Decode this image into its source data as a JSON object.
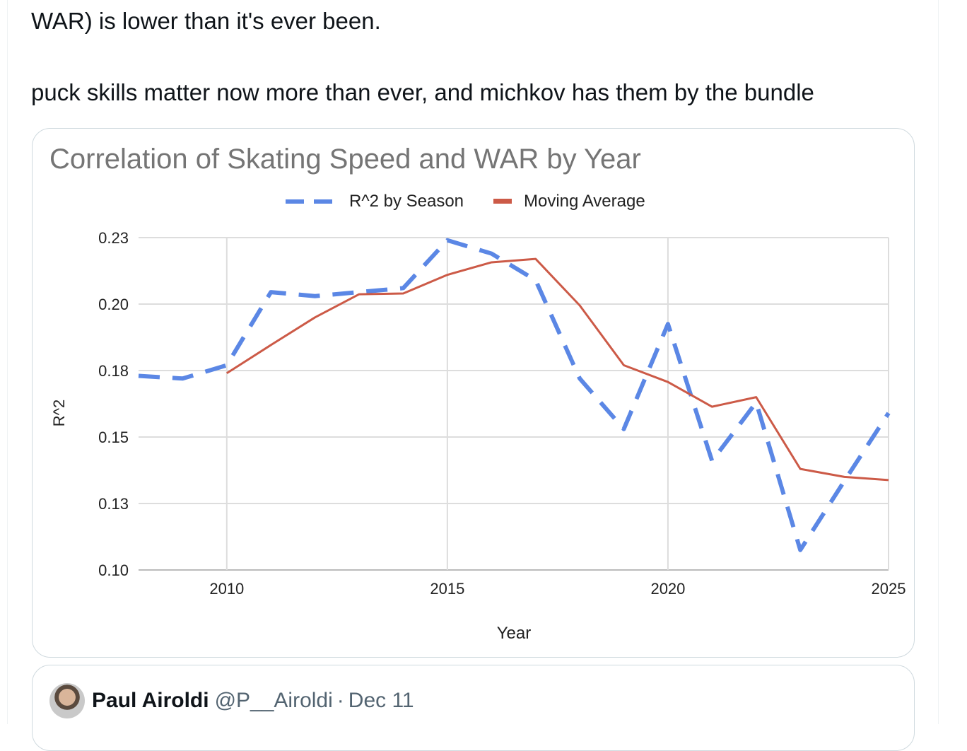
{
  "tweet": {
    "line1": "WAR) is lower than it's ever been.",
    "line2": "puck skills matter now more than ever, and michkov has them by the bundle"
  },
  "chart_data": {
    "type": "line",
    "title": "Correlation of Skating Speed and WAR by Year",
    "xlabel": "Year",
    "ylabel": "R^2",
    "xlim": [
      2008,
      2025
    ],
    "ylim": [
      0.1,
      0.225
    ],
    "x_ticks": [
      "2010",
      "2015",
      "2020",
      "2025"
    ],
    "y_ticks": [
      "0.10",
      "0.13",
      "0.15",
      "0.18",
      "0.20",
      "0.23"
    ],
    "grid": true,
    "legend_position": "top",
    "x": [
      2008,
      2009,
      2010,
      2011,
      2012,
      2013,
      2014,
      2015,
      2016,
      2017,
      2018,
      2019,
      2020,
      2021,
      2022,
      2023,
      2024,
      2025
    ],
    "series": [
      {
        "name": "R^2 by Season",
        "color": "#5b87e5",
        "style": "dashed",
        "values": [
          0.173,
          0.172,
          0.177,
          0.2045,
          0.203,
          0.2045,
          0.206,
          0.224,
          0.219,
          0.209,
          0.172,
          0.153,
          0.1925,
          0.141,
          0.163,
          0.1075,
          0.1335,
          0.159
        ]
      },
      {
        "name": "Moving Average",
        "color": "#cc5a47",
        "style": "solid",
        "values": [
          null,
          null,
          0.174,
          0.1846,
          0.195,
          0.2037,
          0.204,
          0.211,
          0.2157,
          0.217,
          0.1995,
          0.177,
          0.1707,
          0.1614,
          0.165,
          0.138,
          0.135,
          0.1338
        ]
      }
    ]
  },
  "quote": {
    "name": "Paul Airoldi",
    "handle": "@P__Airoldi",
    "dot": "·",
    "date": "Dec 11"
  }
}
